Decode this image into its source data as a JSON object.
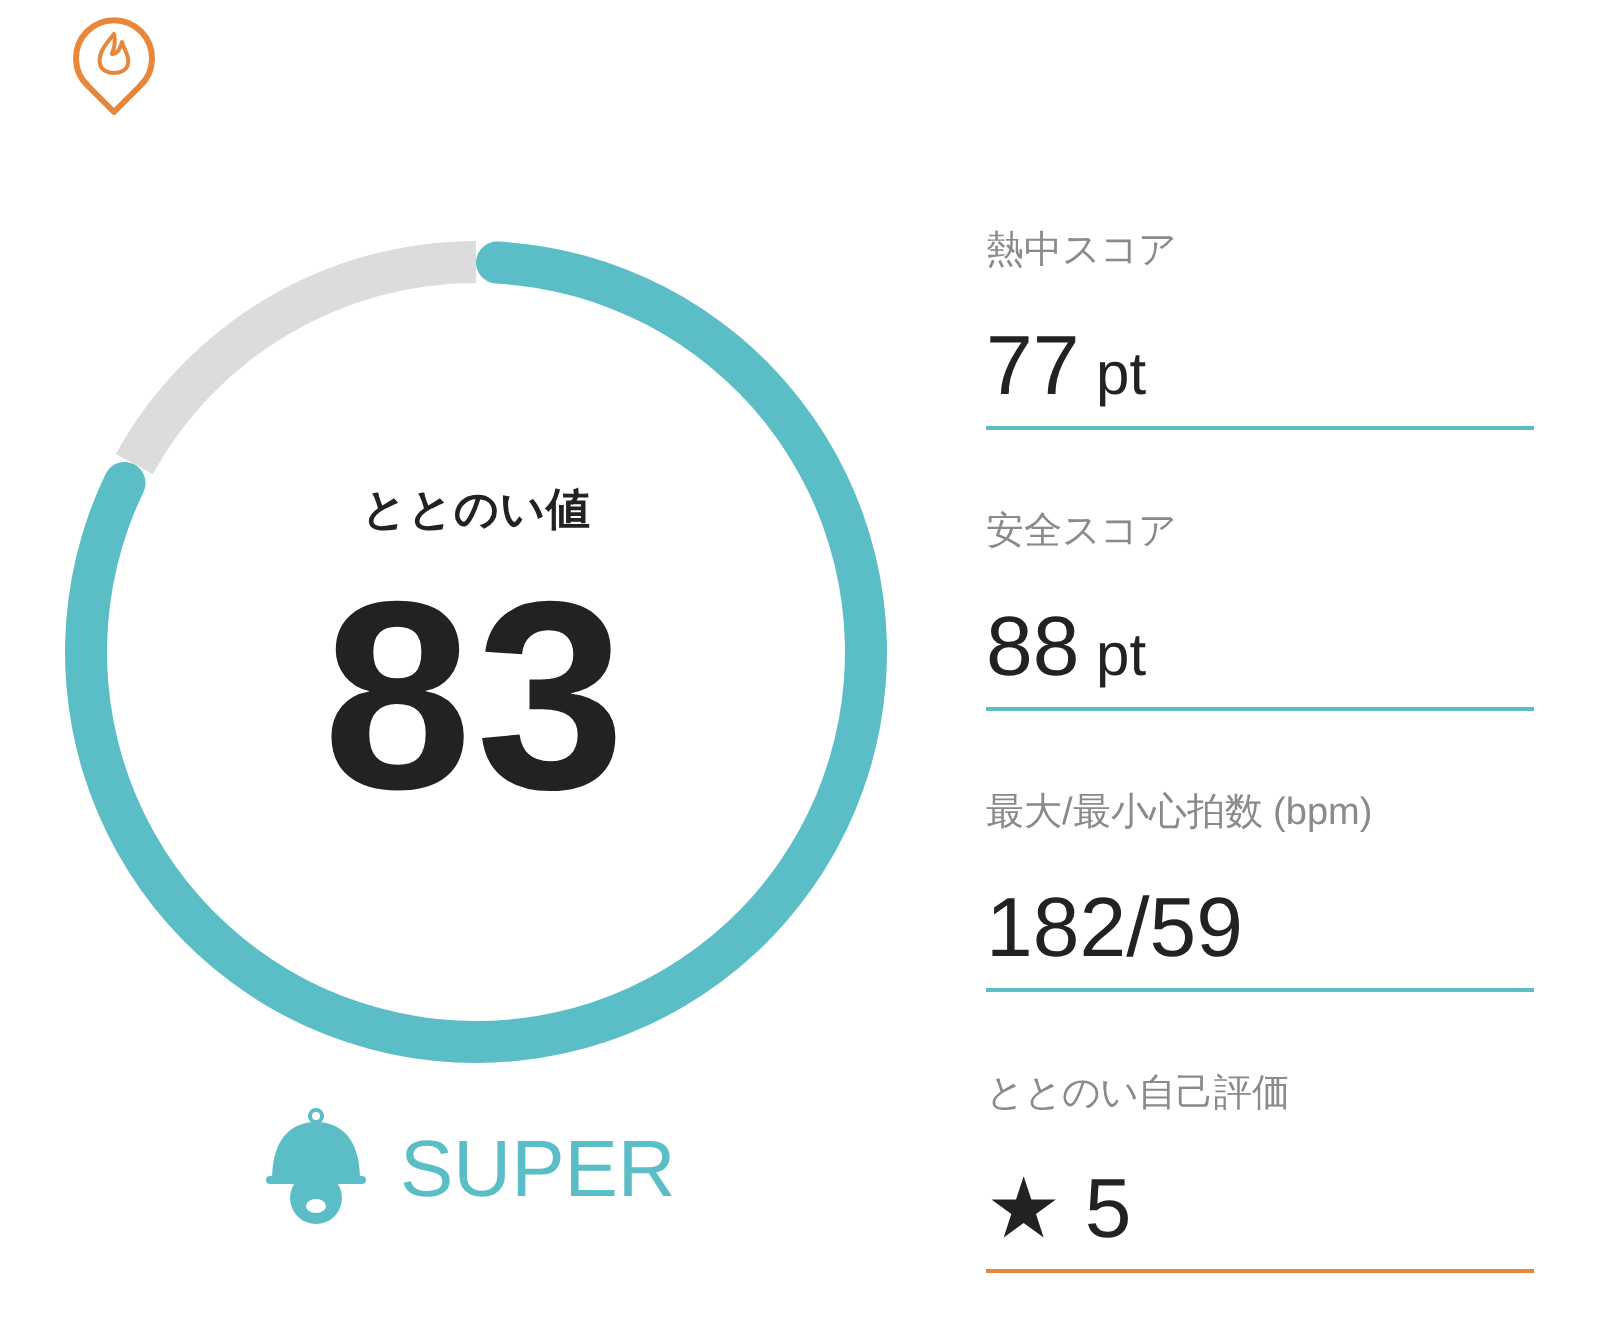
{
  "chart_data": [
    {
      "type": "donut",
      "title": "ととのい値",
      "categories": [
        null,
        null
      ],
      "values": [
        83,
        17
      ],
      "colors": [
        "#5bbec6",
        "#dcdcdc"
      ],
      "value_labels": [
        "83",
        null
      ],
      "annotations": [
        "SUPER"
      ]
    },
    {
      "type": "other",
      "categories": [
        "熱中スコア",
        "安全スコア",
        "最大/最小心拍数 (bpm)",
        "ととのい自己評価"
      ],
      "value_labels": [
        "77 pt",
        "88 pt",
        "182/59",
        "★ 5"
      ],
      "colors": [
        "#5bbec6",
        "#5bbec6",
        "#5bbec6",
        "#e8873a"
      ]
    }
  ]
}
